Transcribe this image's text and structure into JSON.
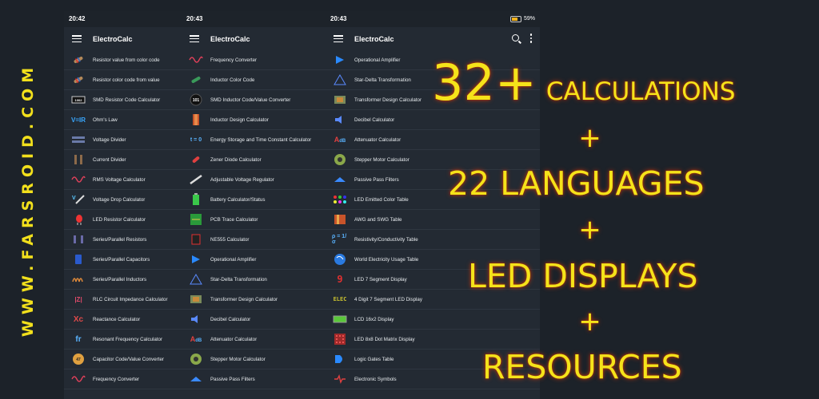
{
  "watermark": "WWW.FARSROID.COM",
  "app_title": "ElectroCalc",
  "phone1": {
    "time": "20:42",
    "items": [
      {
        "label": "Resistor value from color code",
        "icon": "resistor-color-icon"
      },
      {
        "label": "Resistor color code from value",
        "icon": "resistor-color-icon"
      },
      {
        "label": "SMD Resistor Code Calculator",
        "icon": "smd-resistor-icon"
      },
      {
        "label": "Ohm's Law",
        "icon": "ohms-law-icon"
      },
      {
        "label": "Voltage Divider",
        "icon": "voltage-divider-icon"
      },
      {
        "label": "Current Divider",
        "icon": "current-divider-icon"
      },
      {
        "label": "RMS Voltage Calculator",
        "icon": "sine-wave-icon"
      },
      {
        "label": "Voltage Drop Calculator",
        "icon": "voltage-drop-icon"
      },
      {
        "label": "LED Resistor Calculator",
        "icon": "led-resistor-icon"
      },
      {
        "label": "Series/Parallel Resistors",
        "icon": "series-resistors-icon"
      },
      {
        "label": "Series/Parallel Capacitors",
        "icon": "capacitor-icon"
      },
      {
        "label": "Series/Parallel Inductors",
        "icon": "inductor-icon"
      },
      {
        "label": "RLC Circuit Impedance Calculator",
        "icon": "impedance-icon"
      },
      {
        "label": "Reactance Calculator",
        "icon": "reactance-icon"
      },
      {
        "label": "Resonant Frequency Calculator",
        "icon": "resonant-frequency-icon"
      },
      {
        "label": "Capacitor Code/Value Converter",
        "icon": "capacitor-code-icon"
      },
      {
        "label": "Frequency Converter",
        "icon": "sine-wave-icon"
      }
    ]
  },
  "phone2": {
    "time": "20:43",
    "items": [
      {
        "label": "Frequency Converter",
        "icon": "sine-wave-icon"
      },
      {
        "label": "Inductor Color Code",
        "icon": "inductor-color-icon"
      },
      {
        "label": "SMD Inductor Code/Value Converter",
        "icon": "smd-inductor-icon"
      },
      {
        "label": "Inductor Design Calculator",
        "icon": "inductor-design-icon"
      },
      {
        "label": "Energy Storage and Time Constant Calculator",
        "icon": "time-constant-icon"
      },
      {
        "label": "Zener Diode Calculator",
        "icon": "zener-diode-icon"
      },
      {
        "label": "Adjustable Voltage Regulator",
        "icon": "regulator-icon"
      },
      {
        "label": "Battery Calculator/Status",
        "icon": "battery-icon"
      },
      {
        "label": "PCB Trace Calculator",
        "icon": "pcb-trace-icon"
      },
      {
        "label": "NE555 Calculator",
        "icon": "ne555-icon"
      },
      {
        "label": "Operational Amplifier",
        "icon": "op-amp-icon"
      },
      {
        "label": "Star-Delta Transformation",
        "icon": "star-delta-icon"
      },
      {
        "label": "Transformer Design Calculator",
        "icon": "transformer-icon"
      },
      {
        "label": "Decibel Calculator",
        "icon": "speaker-icon"
      },
      {
        "label": "Attenuator Calculator",
        "icon": "attenuator-icon"
      },
      {
        "label": "Stepper Motor Calculator",
        "icon": "stepper-motor-icon"
      },
      {
        "label": "Passive Pass Filters",
        "icon": "filter-icon"
      }
    ]
  },
  "phone3": {
    "time": "20:43",
    "battery": "59%",
    "items": [
      {
        "label": "Operational Amplifier",
        "icon": "op-amp-icon"
      },
      {
        "label": "Star-Delta Transformation",
        "icon": "star-delta-icon"
      },
      {
        "label": "Transformer Design Calculator",
        "icon": "transformer-icon"
      },
      {
        "label": "Decibel Calculator",
        "icon": "speaker-icon"
      },
      {
        "label": "Attenuator Calculator",
        "icon": "attenuator-icon"
      },
      {
        "label": "Stepper Motor Calculator",
        "icon": "stepper-motor-icon"
      },
      {
        "label": "Passive Pass Filters",
        "icon": "filter-icon"
      },
      {
        "label": "LED Emitted Color Table",
        "icon": "led-color-icon"
      },
      {
        "label": "AWG and SWG Table",
        "icon": "wire-gauge-icon"
      },
      {
        "label": "Resistivity/Conductivity Table",
        "icon": "resistivity-icon"
      },
      {
        "label": "World Electricity Usage Table",
        "icon": "globe-icon"
      },
      {
        "label": "LED 7 Segment Display",
        "icon": "seven-segment-icon"
      },
      {
        "label": "4 Digit 7 Segment LED Display",
        "icon": "four-digit-display-icon"
      },
      {
        "label": "LCD 16x2 Display",
        "icon": "lcd-icon"
      },
      {
        "label": "LED 8x8 Dot Matrix Display",
        "icon": "dot-matrix-icon"
      },
      {
        "label": "Logic Gates Table",
        "icon": "logic-gates-icon"
      },
      {
        "label": "Electronic Symbols",
        "icon": "electronic-symbols-icon"
      }
    ]
  },
  "promo": {
    "line1_big": "32+",
    "line1_small": "CALCULATIONS",
    "plus": "+",
    "line2": "22 LANGUAGES",
    "line3": "LED DISPLAYS",
    "line4": "RESOURCES"
  },
  "colors": {
    "background": "#1c2229",
    "panel": "#232a33",
    "promo_text": "#f5e31a",
    "promo_glow": "#c23a10",
    "watermark": "#f2e01c"
  }
}
